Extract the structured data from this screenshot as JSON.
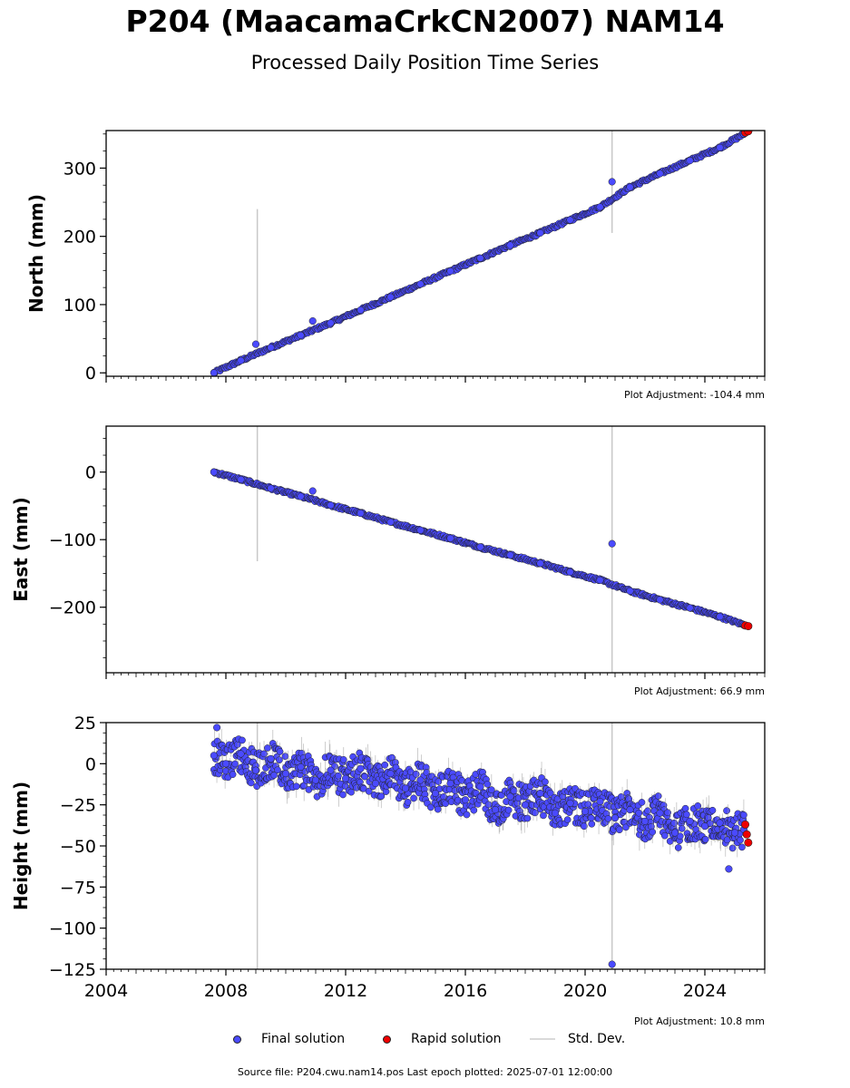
{
  "header": {
    "title": "P204 (MaacamaCrkCN2007) NAM14",
    "subtitle": "Processed Daily Position Time Series"
  },
  "footer": {
    "source": "Source file: P204.cwu.nam14.pos  Last epoch plotted: 2025-07-01 12:00:00"
  },
  "legend": {
    "final": "Final solution",
    "rapid": "Rapid solution",
    "stddev": "Std. Dev."
  },
  "colors": {
    "final": "#4a4aff",
    "rapid": "#ee0000",
    "stddev": "#c8c8c8",
    "edge": "#222222"
  },
  "chart_data": [
    {
      "type": "scatter",
      "ylabel": "North (mm)",
      "adjustment": "Plot Adjustment: -104.4 mm",
      "xlim": [
        2004,
        2026
      ],
      "ylim": [
        -5,
        355
      ],
      "yticks": [
        0,
        100,
        200,
        300
      ],
      "ytick_labels": [
        "0",
        "100",
        "200",
        "300"
      ],
      "xticks": [
        2004,
        2008,
        2012,
        2016,
        2020,
        2024
      ],
      "xtick_labels": [],
      "series": [
        {
          "name": "Final solution",
          "x": [
            2007.6,
            2008.5,
            2009.5,
            2010.5,
            2011.5,
            2012.5,
            2013.5,
            2014.5,
            2015.5,
            2016.5,
            2017.5,
            2018.5,
            2019.5,
            2020.5,
            2021.5,
            2022.5,
            2023.5,
            2024.5,
            2025.3
          ],
          "y": [
            0,
            18,
            37,
            55,
            73,
            92,
            111,
            130,
            149,
            168,
            187,
            205,
            224,
            243,
            272,
            292,
            311,
            330,
            350
          ]
        },
        {
          "name": "Rapid solution",
          "x": [
            2025.35,
            2025.45
          ],
          "y": [
            352,
            354
          ]
        }
      ],
      "outliers": [
        {
          "x": 2009.0,
          "y": 42
        },
        {
          "x": 2010.9,
          "y": 76
        },
        {
          "x": 2020.9,
          "y": 280
        }
      ],
      "stddev_spikes": [
        {
          "x": 2009.05,
          "y0": 30,
          "y1": 240
        },
        {
          "x": 2020.9,
          "y0": 205,
          "y1": 355
        }
      ]
    },
    {
      "type": "scatter",
      "ylabel": "East (mm)",
      "adjustment": "Plot Adjustment: 66.9 mm",
      "xlim": [
        2004,
        2026
      ],
      "ylim": [
        -297,
        68
      ],
      "yticks": [
        -200,
        -100,
        0
      ],
      "ytick_labels": [
        "−200",
        "−100",
        "0"
      ],
      "xticks": [
        2004,
        2008,
        2012,
        2016,
        2020,
        2024
      ],
      "xtick_labels": [],
      "series": [
        {
          "name": "Final solution",
          "x": [
            2007.6,
            2008.5,
            2009.5,
            2010.5,
            2011.5,
            2012.5,
            2013.5,
            2014.5,
            2015.5,
            2016.5,
            2017.5,
            2018.5,
            2019.5,
            2020.5,
            2021.5,
            2022.5,
            2023.5,
            2024.5,
            2025.3
          ],
          "y": [
            0,
            -11,
            -24,
            -36,
            -49,
            -61,
            -74,
            -86,
            -98,
            -111,
            -123,
            -135,
            -148,
            -160,
            -176,
            -189,
            -201,
            -214,
            -226
          ]
        },
        {
          "name": "Rapid solution",
          "x": [
            2025.35,
            2025.45
          ],
          "y": [
            -227,
            -228
          ]
        }
      ],
      "outliers": [
        {
          "x": 2020.9,
          "y": -106
        },
        {
          "x": 2010.9,
          "y": -28
        }
      ],
      "stddev_spikes": [
        {
          "x": 2009.05,
          "y0": -132,
          "y1": 68
        },
        {
          "x": 2020.9,
          "y0": -297,
          "y1": 68
        }
      ]
    },
    {
      "type": "scatter",
      "ylabel": "Height (mm)",
      "adjustment": "Plot Adjustment: 10.8 mm",
      "xlim": [
        2004,
        2026
      ],
      "ylim": [
        -125,
        25
      ],
      "yticks": [
        -125,
        -100,
        -75,
        -50,
        -25,
        0,
        25
      ],
      "ytick_labels": [
        "−125",
        "−100",
        "−75",
        "−50",
        "−25",
        "0",
        "25"
      ],
      "xticks": [
        2004,
        2008,
        2012,
        2016,
        2020,
        2024
      ],
      "xtick_labels": [
        "2004",
        "2008",
        "2012",
        "2016",
        "2020",
        "2024"
      ],
      "series": [
        {
          "name": "Final solution",
          "x": [
            2007.6,
            2008.0,
            2008.5,
            2009.0,
            2009.5,
            2010.0,
            2010.5,
            2011.0,
            2011.5,
            2012.0,
            2012.5,
            2013.0,
            2013.5,
            2014.0,
            2014.5,
            2015.0,
            2015.5,
            2016.0,
            2016.5,
            2017.0,
            2017.5,
            2018.0,
            2018.5,
            2019.0,
            2019.5,
            2020.0,
            2020.5,
            2021.0,
            2021.5,
            2022.0,
            2022.5,
            2023.0,
            2023.5,
            2024.0,
            2024.5,
            2025.0,
            2025.3
          ],
          "y": [
            5,
            0,
            6,
            -4,
            3,
            -6,
            -2,
            -10,
            -4,
            -9,
            -3,
            -12,
            -6,
            -15,
            -10,
            -18,
            -12,
            -22,
            -14,
            -28,
            -20,
            -25,
            -18,
            -30,
            -24,
            -29,
            -23,
            -33,
            -28,
            -35,
            -30,
            -42,
            -35,
            -38,
            -36,
            -42,
            -40
          ]
        },
        {
          "name": "Rapid solution",
          "x": [
            2025.35,
            2025.4,
            2025.45
          ],
          "y": [
            -37,
            -43,
            -48
          ]
        }
      ],
      "outliers": [
        {
          "x": 2007.7,
          "y": 22
        },
        {
          "x": 2020.9,
          "y": -122
        },
        {
          "x": 2024.8,
          "y": -64
        }
      ],
      "stddev_spikes": [
        {
          "x": 2009.05,
          "y0": -125,
          "y1": 25
        },
        {
          "x": 2020.9,
          "y0": -125,
          "y1": 25
        }
      ]
    }
  ]
}
